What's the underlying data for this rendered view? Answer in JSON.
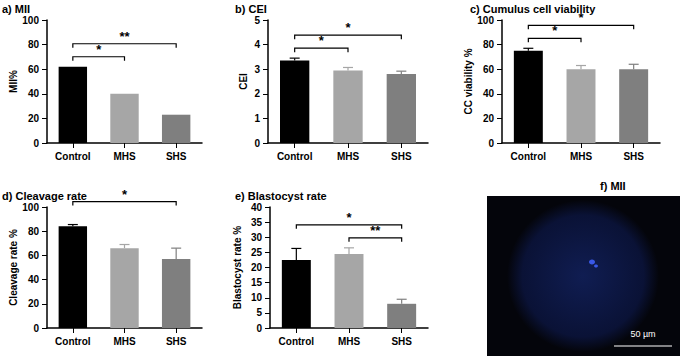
{
  "chart_data": [
    {
      "type": "bar",
      "title": "a) MII",
      "y_label": "MII%",
      "categories": [
        "Control",
        "MHS",
        "SHS"
      ],
      "values": [
        62,
        40,
        23
      ],
      "colors": [
        "#000000",
        "#a6a6a6",
        "#7f7f7f"
      ],
      "ylim": [
        0,
        100
      ],
      "yticks": [
        0,
        20,
        40,
        60,
        80,
        100
      ],
      "grid": false,
      "significance": [
        {
          "from": "Control",
          "to": "MHS",
          "label": "*"
        },
        {
          "from": "Control",
          "to": "SHS",
          "label": "**"
        }
      ]
    },
    {
      "type": "bar",
      "title": "b) CEI",
      "y_label": "CEI",
      "categories": [
        "Control",
        "MHS",
        "SHS"
      ],
      "values": [
        3.35,
        2.95,
        2.8
      ],
      "errors": [
        0.1,
        0.12,
        0.12
      ],
      "colors": [
        "#000000",
        "#a6a6a6",
        "#7f7f7f"
      ],
      "ylim": [
        0,
        5
      ],
      "yticks": [
        0,
        1,
        2,
        3,
        4,
        5
      ],
      "grid": false,
      "significance": [
        {
          "from": "Control",
          "to": "MHS",
          "label": "*"
        },
        {
          "from": "Control",
          "to": "SHS",
          "label": "*"
        }
      ]
    },
    {
      "type": "bar",
      "title": "c) Cumulus cell viability",
      "y_label": "CC viability %",
      "categories": [
        "Control",
        "MHS",
        "SHS"
      ],
      "values": [
        75,
        60,
        60
      ],
      "errors": [
        2,
        3,
        4
      ],
      "colors": [
        "#000000",
        "#a6a6a6",
        "#7f7f7f"
      ],
      "ylim": [
        0,
        100
      ],
      "yticks": [
        0,
        20,
        40,
        60,
        80,
        100
      ],
      "grid": false,
      "significance": [
        {
          "from": "Control",
          "to": "MHS",
          "label": "*"
        },
        {
          "from": "Control",
          "to": "SHS",
          "label": "*"
        }
      ]
    },
    {
      "type": "bar",
      "title": "d) Cleavage rate",
      "y_label": "Cleavage rate %",
      "categories": [
        "Control",
        "MHS",
        "SHS"
      ],
      "values": [
        84,
        66,
        57
      ],
      "errors": [
        1.5,
        3,
        9
      ],
      "colors": [
        "#000000",
        "#a6a6a6",
        "#7f7f7f"
      ],
      "ylim": [
        0,
        100
      ],
      "yticks": [
        0,
        20,
        40,
        60,
        80,
        100
      ],
      "grid": false,
      "significance": [
        {
          "from": "Control",
          "to": "SHS",
          "label": "*"
        }
      ]
    },
    {
      "type": "bar",
      "title": "e) Blastocyst rate",
      "y_label": "Blastocyst rate %",
      "categories": [
        "Control",
        "MHS",
        "SHS"
      ],
      "values": [
        22.5,
        24.5,
        8
      ],
      "errors": [
        3.8,
        2,
        1.5
      ],
      "colors": [
        "#000000",
        "#a6a6a6",
        "#7f7f7f"
      ],
      "ylim": [
        0,
        40
      ],
      "yticks": [
        0,
        5,
        10,
        15,
        20,
        25,
        30,
        35,
        40
      ],
      "grid": false,
      "significance": [
        {
          "from": "Control",
          "to": "SHS",
          "label": "*"
        },
        {
          "from": "MHS",
          "to": "SHS",
          "label": "**"
        }
      ]
    }
  ],
  "image_panel": {
    "title": "f) MII",
    "scale_bar_label": "50 µm"
  }
}
